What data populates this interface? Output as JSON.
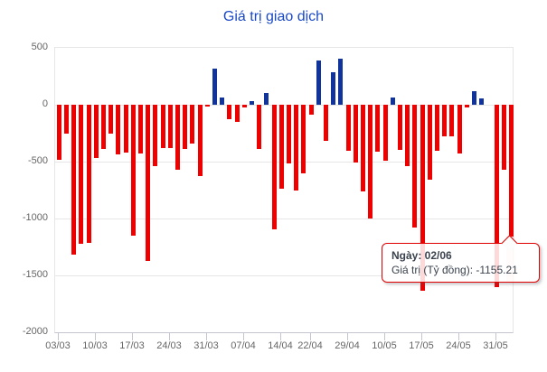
{
  "title": "Giá trị giao dịch",
  "colors": {
    "title": "#1a49c6",
    "bar_negative": "#ee0000",
    "bar_positive": "#10349c",
    "axis_text": "#666666",
    "gridline": "#e6e6e6",
    "tooltip_border": "#e00000"
  },
  "y_axis": {
    "labels": [
      "500",
      "0",
      "-500",
      "-1000",
      "-1500",
      "-2000"
    ]
  },
  "x_axis": {
    "tick_labels": [
      "03/03",
      "10/03",
      "17/03",
      "24/03",
      "31/03",
      "07/04",
      "14/04",
      "22/04",
      "29/04",
      "10/05",
      "17/05",
      "24/05",
      "31/05"
    ]
  },
  "tooltip": {
    "line1": "Ngày: 02/06",
    "line2": "Giá trị (Tỷ đồng): -1155.21"
  },
  "chart_data": {
    "type": "bar",
    "title": "Giá trị giao dịch",
    "ylabel": "Giá trị (Tỷ đồng)",
    "ylim": [
      -2000,
      500
    ],
    "y_tick_step": 500,
    "grid": true,
    "x_tick_labels": [
      "03/03",
      "10/03",
      "17/03",
      "24/03",
      "31/03",
      "07/04",
      "14/04",
      "22/04",
      "29/04",
      "10/05",
      "17/05",
      "24/05",
      "31/05"
    ],
    "x_tick_bar_indices": [
      0,
      5,
      10,
      15,
      20,
      25,
      30,
      34,
      39,
      44,
      49,
      54,
      59
    ],
    "values": [
      -482,
      -257,
      -1318,
      -1220,
      -1212,
      -470,
      -392,
      -251,
      -437,
      -423,
      -1150,
      -431,
      -1375,
      -537,
      -384,
      -384,
      -569,
      -388,
      -343,
      -628,
      -18,
      317,
      66,
      -124,
      -153,
      -26,
      32,
      -389,
      105,
      -1092,
      -737,
      -513,
      -750,
      -600,
      -90,
      388,
      -317,
      290,
      405,
      -404,
      -510,
      -758,
      -1003,
      -409,
      -488,
      66,
      -396,
      -541,
      -1082,
      -1637,
      -660,
      -404,
      -277,
      -277,
      -430,
      -20,
      119,
      53,
      0,
      -1600,
      -574,
      -1155.21
    ],
    "color_rule": "negative bars red, positive bars blue",
    "hovered_point": {
      "x_label": "02/06",
      "value": -1155.21,
      "bar_index": 61
    }
  }
}
